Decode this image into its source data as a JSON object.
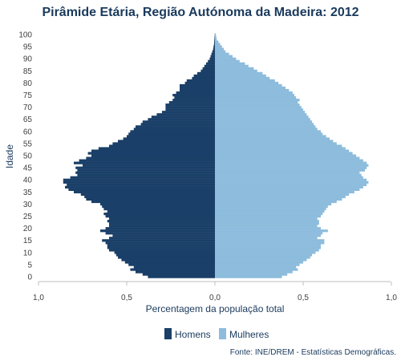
{
  "chart_data": {
    "type": "bar",
    "orientation": "horizontal-pyramid",
    "title": "Pirâmide Etária, Região Autónoma da Madeira: 2012",
    "xlabel": "Percentagem da população total",
    "ylabel": "Idade",
    "xlim": [
      -1.0,
      1.0
    ],
    "ylim": [
      0,
      100
    ],
    "x_tick_labels": [
      "1,0",
      "0,5",
      "0,0",
      "0,5",
      "1,0"
    ],
    "y_ticks": [
      0,
      5,
      10,
      15,
      20,
      25,
      30,
      35,
      40,
      45,
      50,
      55,
      60,
      65,
      70,
      75,
      80,
      85,
      90,
      95,
      100
    ],
    "grid": false,
    "legend_position": "bottom",
    "source_note": "Fonte: INE/DREM - Estatísticas Demográficas.",
    "colors": {
      "men": "#1a3f68",
      "women": "#8dbcdc",
      "title": "#1a3a5c"
    },
    "ages": [
      0,
      1,
      2,
      3,
      4,
      5,
      6,
      7,
      8,
      9,
      10,
      11,
      12,
      13,
      14,
      15,
      16,
      17,
      18,
      19,
      20,
      21,
      22,
      23,
      24,
      25,
      26,
      27,
      28,
      29,
      30,
      31,
      32,
      33,
      34,
      35,
      36,
      37,
      38,
      39,
      40,
      41,
      42,
      43,
      44,
      45,
      46,
      47,
      48,
      49,
      50,
      51,
      52,
      53,
      54,
      55,
      56,
      57,
      58,
      59,
      60,
      61,
      62,
      63,
      64,
      65,
      66,
      67,
      68,
      69,
      70,
      71,
      72,
      73,
      74,
      75,
      76,
      77,
      78,
      79,
      80,
      81,
      82,
      83,
      84,
      85,
      86,
      87,
      88,
      89,
      90,
      91,
      92,
      93,
      94,
      95,
      96,
      97,
      98,
      99,
      100
    ],
    "series": [
      {
        "name": "Homens",
        "values": [
          0.38,
          0.41,
          0.45,
          0.48,
          0.46,
          0.49,
          0.51,
          0.53,
          0.55,
          0.56,
          0.57,
          0.6,
          0.61,
          0.61,
          0.62,
          0.64,
          0.6,
          0.58,
          0.62,
          0.65,
          0.62,
          0.6,
          0.6,
          0.61,
          0.6,
          0.62,
          0.63,
          0.61,
          0.63,
          0.64,
          0.65,
          0.7,
          0.73,
          0.74,
          0.76,
          0.8,
          0.83,
          0.85,
          0.84,
          0.86,
          0.86,
          0.82,
          0.78,
          0.79,
          0.78,
          0.79,
          0.75,
          0.8,
          0.77,
          0.73,
          0.7,
          0.72,
          0.7,
          0.66,
          0.6,
          0.58,
          0.55,
          0.52,
          0.5,
          0.49,
          0.48,
          0.46,
          0.45,
          0.42,
          0.41,
          0.38,
          0.36,
          0.33,
          0.3,
          0.28,
          0.28,
          0.28,
          0.26,
          0.24,
          0.23,
          0.24,
          0.22,
          0.2,
          0.2,
          0.2,
          0.17,
          0.16,
          0.13,
          0.12,
          0.1,
          0.08,
          0.07,
          0.06,
          0.05,
          0.04,
          0.03,
          0.025,
          0.02,
          0.015,
          0.01,
          0.008,
          0.005,
          0.004,
          0.003,
          0.002,
          0.001
        ]
      },
      {
        "name": "Mulheres",
        "values": [
          0.38,
          0.41,
          0.44,
          0.47,
          0.46,
          0.48,
          0.5,
          0.52,
          0.54,
          0.55,
          0.57,
          0.59,
          0.6,
          0.6,
          0.62,
          0.62,
          0.58,
          0.6,
          0.61,
          0.64,
          0.6,
          0.58,
          0.59,
          0.59,
          0.58,
          0.6,
          0.61,
          0.62,
          0.63,
          0.64,
          0.66,
          0.69,
          0.72,
          0.74,
          0.76,
          0.79,
          0.82,
          0.84,
          0.86,
          0.87,
          0.86,
          0.84,
          0.83,
          0.82,
          0.85,
          0.86,
          0.87,
          0.86,
          0.84,
          0.82,
          0.8,
          0.78,
          0.76,
          0.74,
          0.72,
          0.69,
          0.67,
          0.65,
          0.63,
          0.61,
          0.6,
          0.58,
          0.57,
          0.56,
          0.55,
          0.54,
          0.53,
          0.52,
          0.51,
          0.5,
          0.49,
          0.48,
          0.47,
          0.48,
          0.46,
          0.45,
          0.44,
          0.42,
          0.4,
          0.38,
          0.36,
          0.34,
          0.31,
          0.29,
          0.27,
          0.24,
          0.22,
          0.19,
          0.17,
          0.14,
          0.12,
          0.1,
          0.08,
          0.06,
          0.05,
          0.04,
          0.03,
          0.02,
          0.01,
          0.008,
          0.005
        ]
      }
    ]
  }
}
